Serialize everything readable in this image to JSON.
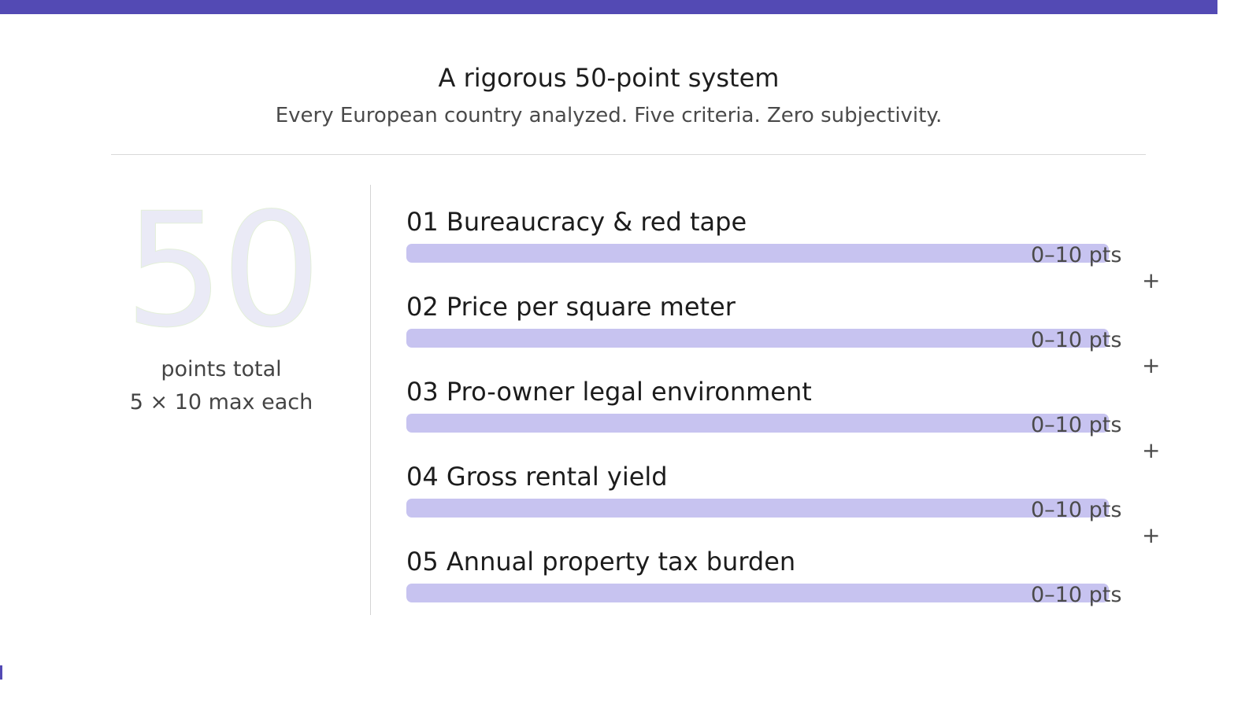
{
  "header": {
    "title": "A rigorous 50-point system",
    "subtitle": "Every European country analyzed. Five criteria. Zero subjectivity."
  },
  "total": {
    "number": "50",
    "label": "points total",
    "sub": "5 × 10 max each"
  },
  "criteria": [
    {
      "label": "01 Bureaucracy & red tape",
      "points": "0–10 pts",
      "separator": "+"
    },
    {
      "label": "02 Price per square meter",
      "points": "0–10 pts",
      "separator": "+"
    },
    {
      "label": "03 Pro-owner legal environment",
      "points": "0–10 pts",
      "separator": "+"
    },
    {
      "label": "04 Gross rental yield",
      "points": "0–10 pts",
      "separator": "+"
    },
    {
      "label": "05 Annual property tax burden",
      "points": "0–10 pts"
    }
  ],
  "colors": {
    "accent": "#534ab4",
    "bar": "#c7c3f0",
    "big_number": "#eaeaf6"
  }
}
